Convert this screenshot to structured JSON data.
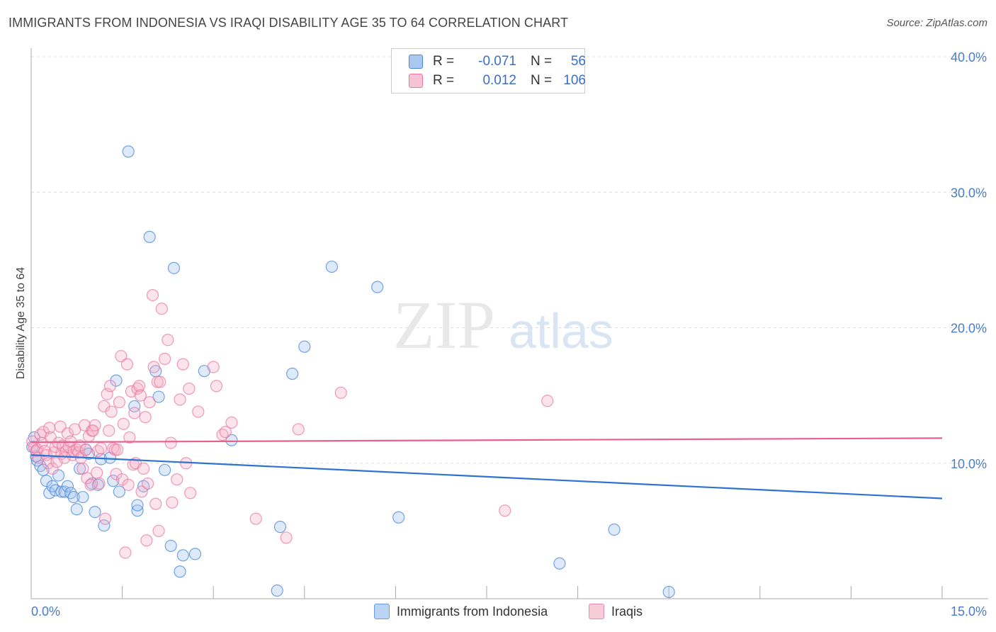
{
  "title": "IMMIGRANTS FROM INDONESIA VS IRAQI DISABILITY AGE 35 TO 64 CORRELATION CHART",
  "source": "Source: ZipAtlas.com",
  "watermark": {
    "zip": "ZIP",
    "atlas": "atlas"
  },
  "legend": {
    "rows": [
      {
        "r_label": "R =",
        "r_value": "-0.071",
        "n_label": "N =",
        "n_value": "56",
        "color": "#a9c8f0"
      },
      {
        "r_label": "R =",
        "r_value": "0.012",
        "n_label": "N =",
        "n_value": "106",
        "color": "#f5b3c8"
      }
    ]
  },
  "bottom_legend": {
    "series1": "Immigrants from Indonesia",
    "series2": "Iraqis"
  },
  "chart_data": {
    "type": "scatter",
    "title": "IMMIGRANTS FROM INDONESIA VS IRAQI DISABILITY AGE 35 TO 64 CORRELATION CHART",
    "xlabel": "",
    "ylabel": "Disability Age 35 to 64",
    "xlim": [
      0,
      15
    ],
    "ylim": [
      0,
      40
    ],
    "x_tick_labels": [
      "0.0%",
      "15.0%"
    ],
    "y_tick_labels": [
      "10.0%",
      "20.0%",
      "30.0%",
      "40.0%"
    ],
    "y_ticks": [
      10,
      20,
      30,
      40
    ],
    "grid": true,
    "series": [
      {
        "name": "Immigrants from Indonesia",
        "color": "#4a86d8",
        "fill": "rgba(160,196,240,0.35)",
        "trend": {
          "x": [
            0,
            15
          ],
          "y": [
            10.6,
            7.4
          ],
          "color": "#2f73d0"
        },
        "points": [
          [
            0.05,
            11.9
          ],
          [
            0.1,
            10.2
          ],
          [
            0.15,
            9.8
          ],
          [
            0.2,
            9.5
          ],
          [
            0.25,
            8.7
          ],
          [
            0.3,
            7.8
          ],
          [
            0.35,
            8.3
          ],
          [
            0.4,
            8.0
          ],
          [
            0.45,
            9.1
          ],
          [
            0.5,
            7.9
          ],
          [
            0.55,
            7.9
          ],
          [
            0.6,
            8.3
          ],
          [
            0.65,
            7.8
          ],
          [
            0.7,
            7.5
          ],
          [
            0.75,
            6.6
          ],
          [
            0.8,
            9.6
          ],
          [
            0.85,
            7.5
          ],
          [
            0.9,
            11.0
          ],
          [
            0.95,
            10.7
          ],
          [
            1.0,
            8.5
          ],
          [
            1.05,
            6.4
          ],
          [
            1.1,
            8.4
          ],
          [
            1.15,
            10.3
          ],
          [
            1.2,
            5.4
          ],
          [
            1.3,
            10.4
          ],
          [
            1.35,
            8.7
          ],
          [
            1.4,
            16.1
          ],
          [
            1.45,
            7.9
          ],
          [
            1.6,
            33.0
          ],
          [
            1.7,
            14.2
          ],
          [
            1.75,
            6.5
          ],
          [
            1.75,
            6.9
          ],
          [
            1.85,
            8.3
          ],
          [
            1.95,
            26.7
          ],
          [
            2.05,
            16.8
          ],
          [
            2.1,
            14.9
          ],
          [
            2.2,
            9.5
          ],
          [
            2.3,
            3.9
          ],
          [
            2.35,
            24.4
          ],
          [
            2.45,
            2.0
          ],
          [
            2.5,
            3.2
          ],
          [
            2.7,
            3.3
          ],
          [
            2.85,
            16.8
          ],
          [
            3.3,
            11.7
          ],
          [
            4.05,
            0.6
          ],
          [
            4.1,
            5.3
          ],
          [
            4.3,
            16.6
          ],
          [
            4.5,
            18.6
          ],
          [
            4.95,
            24.5
          ],
          [
            5.7,
            23.0
          ],
          [
            6.05,
            6.0
          ],
          [
            8.7,
            2.6
          ],
          [
            9.6,
            5.1
          ],
          [
            10.5,
            0.5
          ],
          [
            0.02,
            11.2
          ],
          [
            0.08,
            10.5
          ]
        ]
      },
      {
        "name": "Iraqis",
        "color": "#e87aa0",
        "fill": "rgba(245,179,200,0.35)",
        "trend": {
          "x": [
            0,
            15
          ],
          "y": [
            11.55,
            11.85
          ],
          "color": "#e8608e"
        },
        "points": [
          [
            0.02,
            11.6
          ],
          [
            0.05,
            11.2
          ],
          [
            0.08,
            10.9
          ],
          [
            0.1,
            11.0
          ],
          [
            0.12,
            10.4
          ],
          [
            0.15,
            12.1
          ],
          [
            0.18,
            11.5
          ],
          [
            0.2,
            12.3
          ],
          [
            0.22,
            10.9
          ],
          [
            0.25,
            10.6
          ],
          [
            0.28,
            10.0
          ],
          [
            0.3,
            12.6
          ],
          [
            0.32,
            11.9
          ],
          [
            0.35,
            9.6
          ],
          [
            0.38,
            10.8
          ],
          [
            0.4,
            11.2
          ],
          [
            0.42,
            10.1
          ],
          [
            0.45,
            11.5
          ],
          [
            0.48,
            12.7
          ],
          [
            0.5,
            10.7
          ],
          [
            0.52,
            11.3
          ],
          [
            0.55,
            10.4
          ],
          [
            0.58,
            10.9
          ],
          [
            0.6,
            12.2
          ],
          [
            0.62,
            11.2
          ],
          [
            0.65,
            11.6
          ],
          [
            0.68,
            10.6
          ],
          [
            0.7,
            10.9
          ],
          [
            0.72,
            12.5
          ],
          [
            0.75,
            11.0
          ],
          [
            0.78,
            10.8
          ],
          [
            0.8,
            11.3
          ],
          [
            0.82,
            10.4
          ],
          [
            0.85,
            9.6
          ],
          [
            0.88,
            12.8
          ],
          [
            0.9,
            11.0
          ],
          [
            0.92,
            8.9
          ],
          [
            0.95,
            12.0
          ],
          [
            0.98,
            8.4
          ],
          [
            1.0,
            12.4
          ],
          [
            1.02,
            12.4
          ],
          [
            1.05,
            12.8
          ],
          [
            1.08,
            9.3
          ],
          [
            1.1,
            10.9
          ],
          [
            1.12,
            8.5
          ],
          [
            1.15,
            11.1
          ],
          [
            1.2,
            14.2
          ],
          [
            1.22,
            5.9
          ],
          [
            1.25,
            15.1
          ],
          [
            1.28,
            12.4
          ],
          [
            1.3,
            15.7
          ],
          [
            1.32,
            13.8
          ],
          [
            1.35,
            11.1
          ],
          [
            1.38,
            11.0
          ],
          [
            1.4,
            9.2
          ],
          [
            1.42,
            11.0
          ],
          [
            1.45,
            14.5
          ],
          [
            1.48,
            17.9
          ],
          [
            1.5,
            8.8
          ],
          [
            1.52,
            12.9
          ],
          [
            1.55,
            3.4
          ],
          [
            1.58,
            17.3
          ],
          [
            1.6,
            8.4
          ],
          [
            1.62,
            11.9
          ],
          [
            1.65,
            15.3
          ],
          [
            1.68,
            9.9
          ],
          [
            1.7,
            13.7
          ],
          [
            1.72,
            10.0
          ],
          [
            1.75,
            15.5
          ],
          [
            1.78,
            15.7
          ],
          [
            1.8,
            15.0
          ],
          [
            1.82,
            7.9
          ],
          [
            1.85,
            9.6
          ],
          [
            1.88,
            13.4
          ],
          [
            1.9,
            4.3
          ],
          [
            1.92,
            8.5
          ],
          [
            1.95,
            14.5
          ],
          [
            2.0,
            22.4
          ],
          [
            2.02,
            17.1
          ],
          [
            2.05,
            7.0
          ],
          [
            2.08,
            16.0
          ],
          [
            2.1,
            5.0
          ],
          [
            2.12,
            16.0
          ],
          [
            2.15,
            21.4
          ],
          [
            2.2,
            17.7
          ],
          [
            2.25,
            19.1
          ],
          [
            2.3,
            11.5
          ],
          [
            2.32,
            7.1
          ],
          [
            2.4,
            8.8
          ],
          [
            2.45,
            14.7
          ],
          [
            2.5,
            17.3
          ],
          [
            2.55,
            10.0
          ],
          [
            2.6,
            15.5
          ],
          [
            2.62,
            7.8
          ],
          [
            2.75,
            13.8
          ],
          [
            3.0,
            17.1
          ],
          [
            3.05,
            15.7
          ],
          [
            3.15,
            12.1
          ],
          [
            3.2,
            12.3
          ],
          [
            3.3,
            13.0
          ],
          [
            3.7,
            5.9
          ],
          [
            4.4,
            12.5
          ],
          [
            5.1,
            15.2
          ],
          [
            7.8,
            6.5
          ],
          [
            8.5,
            14.6
          ],
          [
            4.2,
            4.5
          ]
        ]
      }
    ]
  }
}
